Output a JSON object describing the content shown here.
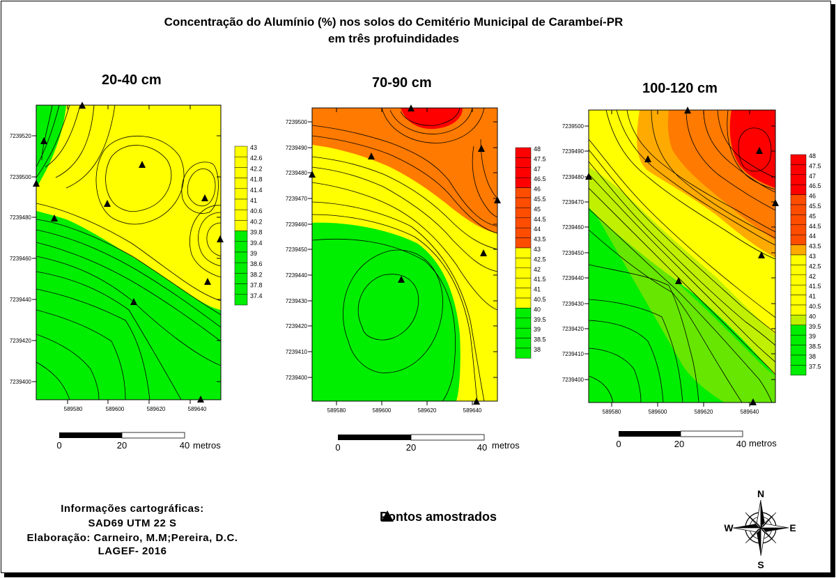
{
  "title_line1": "Concentração do Alumínio (%) nos solos do Cemitério Municipal de Carambeí-PR",
  "title_line2": "em três profuindidades",
  "colors": {
    "red": "#ff0000",
    "orange_red": "#ff4d00",
    "orange": "#ff7a00",
    "light_orange": "#ffaa00",
    "yellow": "#ffff00",
    "yellow_green": "#c0f000",
    "lime": "#66e600",
    "green": "#00ee00"
  },
  "maps": [
    {
      "depth_label": "20-40 cm",
      "y_ticks": [
        "7239520",
        "7239500",
        "7239480",
        "7239460",
        "7239440",
        "7239420",
        "7239400"
      ],
      "x_ticks": [
        "589580",
        "589600",
        "589620",
        "589640"
      ],
      "legend": [
        "43",
        "42.6",
        "42.2",
        "41.8",
        "41.4",
        "41",
        "40.6",
        "40.2",
        "39.8",
        "39.4",
        "39",
        "38.6",
        "38.2",
        "37.8",
        "37.4"
      ]
    },
    {
      "depth_label": "70-90 cm",
      "y_ticks": [
        "7239500",
        "7239490",
        "7239480",
        "7239470",
        "7239460",
        "7239450",
        "7239440",
        "7239430",
        "7239420",
        "7239410",
        "7239400"
      ],
      "x_ticks": [
        "589580",
        "589600",
        "589620",
        "589640"
      ],
      "legend": [
        "48",
        "47.5",
        "47",
        "46.5",
        "46",
        "45.5",
        "45",
        "44.5",
        "44",
        "43.5",
        "43",
        "42.5",
        "42",
        "41.5",
        "41",
        "40.5",
        "40",
        "39.5",
        "39",
        "38.5",
        "38"
      ]
    },
    {
      "depth_label": "100-120 cm",
      "y_ticks": [
        "7239500",
        "7239490",
        "7239480",
        "7239470",
        "7239460",
        "7239450",
        "7239440",
        "7239430",
        "7239420",
        "7239410",
        "7239400"
      ],
      "x_ticks": [
        "589580",
        "589600",
        "589620",
        "589640"
      ],
      "legend": [
        "48",
        "47.5",
        "47",
        "46.5",
        "46",
        "45.5",
        "45",
        "44.5",
        "44",
        "43.5",
        "43",
        "42.5",
        "42",
        "41.5",
        "41",
        "40.5",
        "40",
        "39.5",
        "39",
        "38.5",
        "38",
        "37.5"
      ]
    }
  ],
  "scalebar": {
    "l0": "0",
    "l20": "20",
    "l40": "40",
    "unit": "metros"
  },
  "info": {
    "line1": "Informações cartográficas:",
    "line2": "SAD69  UTM 22 S",
    "line3": "Elaboração: Carneiro, M.M;Pereira, D.C.",
    "line4": "LAGEF- 2016"
  },
  "points_legend": "Pontos amostrados",
  "compass": {
    "n": "N",
    "s": "S",
    "e": "E",
    "w": "W"
  }
}
